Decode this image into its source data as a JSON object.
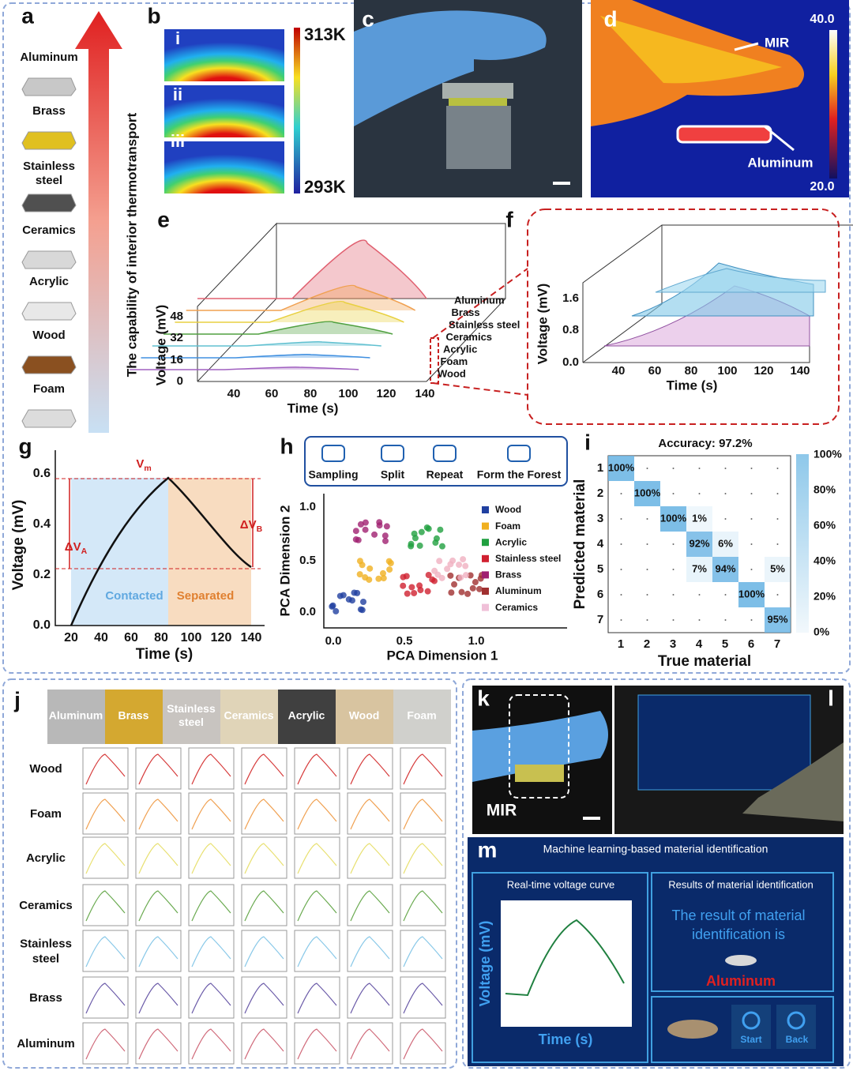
{
  "panels": {
    "a": {
      "label": "a",
      "axis_label": "The capability of interior thermotransport",
      "materials": [
        "Aluminum",
        "Brass",
        [
          "Stainless",
          "steel"
        ],
        "Ceramics",
        "Acrylic",
        "Wood",
        "Foam"
      ]
    },
    "b": {
      "label": "b",
      "rows": [
        "i",
        "ii",
        "iii"
      ],
      "scale_max": "313K",
      "scale_min": "293K"
    },
    "c": {
      "label": "c"
    },
    "d": {
      "label": "d",
      "scale_max": "40.0",
      "scale_min": "20.0",
      "annotations": [
        "MIR",
        "Aluminum"
      ]
    },
    "e": {
      "label": "e",
      "y_label": "Voltage (mV)",
      "x_label": "Time (s)",
      "yticks": [
        "0",
        "16",
        "32",
        "48"
      ],
      "xticks": [
        "40",
        "60",
        "80",
        "100",
        "120",
        "140"
      ],
      "series": [
        "Aluminum",
        "Brass",
        "Stainless steel",
        "Ceramics",
        "Acrylic",
        "Foam",
        "Wood"
      ]
    },
    "f": {
      "label": "f",
      "y_label": "Voltage (mV)",
      "x_label": "Time (s)",
      "yticks": [
        "0.0",
        "0.8",
        "1.6"
      ],
      "xticks": [
        "40",
        "60",
        "80",
        "100",
        "120",
        "140"
      ]
    },
    "g": {
      "label": "g",
      "y_label": "Voltage (mV)",
      "x_label": "Time (s)",
      "yticks": [
        "0.0",
        "0.2",
        "0.4",
        "0.6"
      ],
      "xticks": [
        "20",
        "40",
        "60",
        "80",
        "100",
        "120",
        "140"
      ],
      "peak": {
        "text": "V",
        "sub": "m"
      },
      "delta_a": {
        "text": "ΔV",
        "sub": "A"
      },
      "delta_b": {
        "text": "ΔV",
        "sub": "B"
      },
      "regions": [
        "Contacted",
        "Separated"
      ]
    },
    "h": {
      "label": "h",
      "steps": [
        "Sampling",
        "Split",
        "Repeat",
        "Form the Forest"
      ],
      "y_label": "PCA Dimension 2",
      "x_label": "PCA Dimension 1",
      "yticks": [
        "0.0",
        "0.5",
        "1.0"
      ],
      "xticks": [
        "0.0",
        "0.5",
        "1.0"
      ],
      "legend": [
        "Wood",
        "Foam",
        "Acrylic",
        "Stainless steel",
        "Brass",
        "Aluminum",
        "Ceramics"
      ]
    },
    "i": {
      "label": "i",
      "title": "Accuracy: 97.2%",
      "y_label": "Predicted material",
      "x_label": "True material",
      "ticks": [
        "1",
        "2",
        "3",
        "4",
        "5",
        "6",
        "7"
      ],
      "matrix": [
        [
          "100%",
          null,
          null,
          null,
          null,
          null,
          null
        ],
        [
          null,
          "100%",
          null,
          null,
          null,
          null,
          null
        ],
        [
          null,
          null,
          "100%",
          "1%",
          null,
          null,
          null
        ],
        [
          null,
          null,
          null,
          "92%",
          "6%",
          null,
          null
        ],
        [
          null,
          null,
          null,
          "7%",
          "94%",
          null,
          "5%"
        ],
        [
          null,
          null,
          null,
          null,
          null,
          "100%",
          null
        ],
        [
          null,
          null,
          null,
          null,
          null,
          null,
          "95%"
        ]
      ],
      "colorbar": [
        "100%",
        "80%",
        "60%",
        "40%",
        "20%",
        "0%"
      ]
    },
    "j": {
      "label": "j",
      "columns": [
        "Aluminum",
        "Brass",
        [
          "Stainless",
          "steel"
        ],
        "Ceramics",
        "Acrylic",
        "Wood",
        "Foam"
      ],
      "rows": [
        "Wood",
        "Foam",
        "Acrylic",
        "Ceramics",
        [
          "Stainless",
          "steel"
        ],
        "Brass",
        "Aluminum"
      ]
    },
    "k": {
      "label": "k",
      "caption": "MIR"
    },
    "l": {
      "label": "l"
    },
    "m": {
      "label": "m",
      "title": "Machine learning-based material identification",
      "left_title": "Real-time voltage curve",
      "y_label": "Voltage (mV)",
      "x_label": "Time (s)",
      "right_title": "Results of material identification",
      "result_lines": [
        "The result of material",
        "identification is"
      ],
      "material": "Aluminum",
      "buttons": [
        "Start",
        "Back"
      ]
    }
  }
}
